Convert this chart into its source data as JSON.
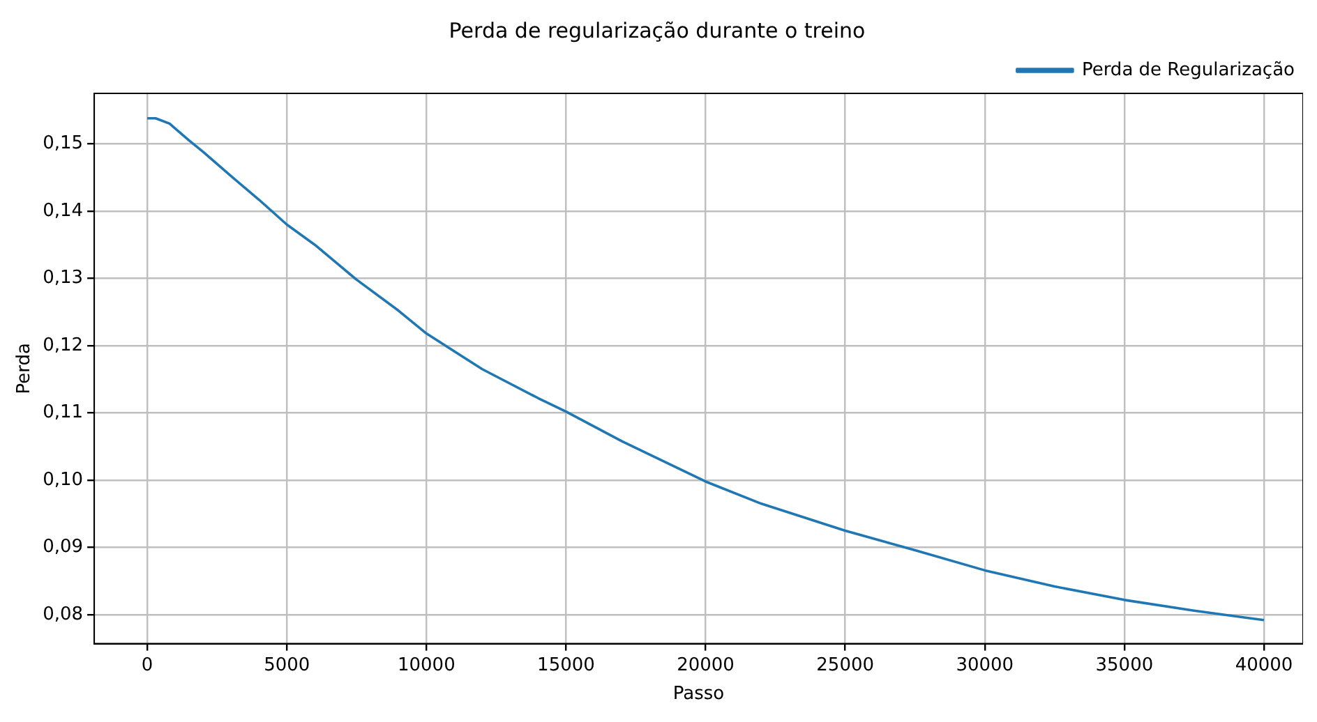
{
  "chart_data": {
    "type": "line",
    "title": "Perda de regularização durante o treino",
    "xlabel": "Passo",
    "ylabel": "Perda",
    "x": [
      0,
      300,
      800,
      1500,
      2000,
      3000,
      4000,
      5000,
      6000,
      7500,
      9000,
      10000,
      12000,
      14000,
      15000,
      17000,
      20000,
      22000,
      25000,
      27500,
      30000,
      32500,
      35000,
      37500,
      40000
    ],
    "series": [
      {
        "name": "Perda de Regularização",
        "color": "#1f77b4",
        "values": [
          0.1538,
          0.1538,
          0.153,
          0.1505,
          0.1488,
          0.1452,
          0.1417,
          0.138,
          0.135,
          0.1298,
          0.1252,
          0.1218,
          0.1165,
          0.1122,
          0.1102,
          0.1058,
          0.0998,
          0.0965,
          0.0925,
          0.0896,
          0.0866,
          0.0842,
          0.0822,
          0.0806,
          0.0792
        ]
      }
    ],
    "xlim": [
      -1900,
      41400
    ],
    "xticks": [
      0,
      5000,
      10000,
      15000,
      20000,
      25000,
      30000,
      35000,
      40000
    ],
    "ylim": [
      0.0757,
      0.1575
    ],
    "yticks": [
      {
        "value": 0.08,
        "label": "0,08"
      },
      {
        "value": 0.09,
        "label": "0,09"
      },
      {
        "value": 0.1,
        "label": "0,10"
      },
      {
        "value": 0.11,
        "label": "0,11"
      },
      {
        "value": 0.12,
        "label": "0,12"
      },
      {
        "value": 0.13,
        "label": "0,13"
      },
      {
        "value": 0.14,
        "label": "0,14"
      },
      {
        "value": 0.15,
        "label": "0,15"
      }
    ],
    "grid": true,
    "legend": "top right",
    "marker": "none",
    "line_style": "solid"
  }
}
